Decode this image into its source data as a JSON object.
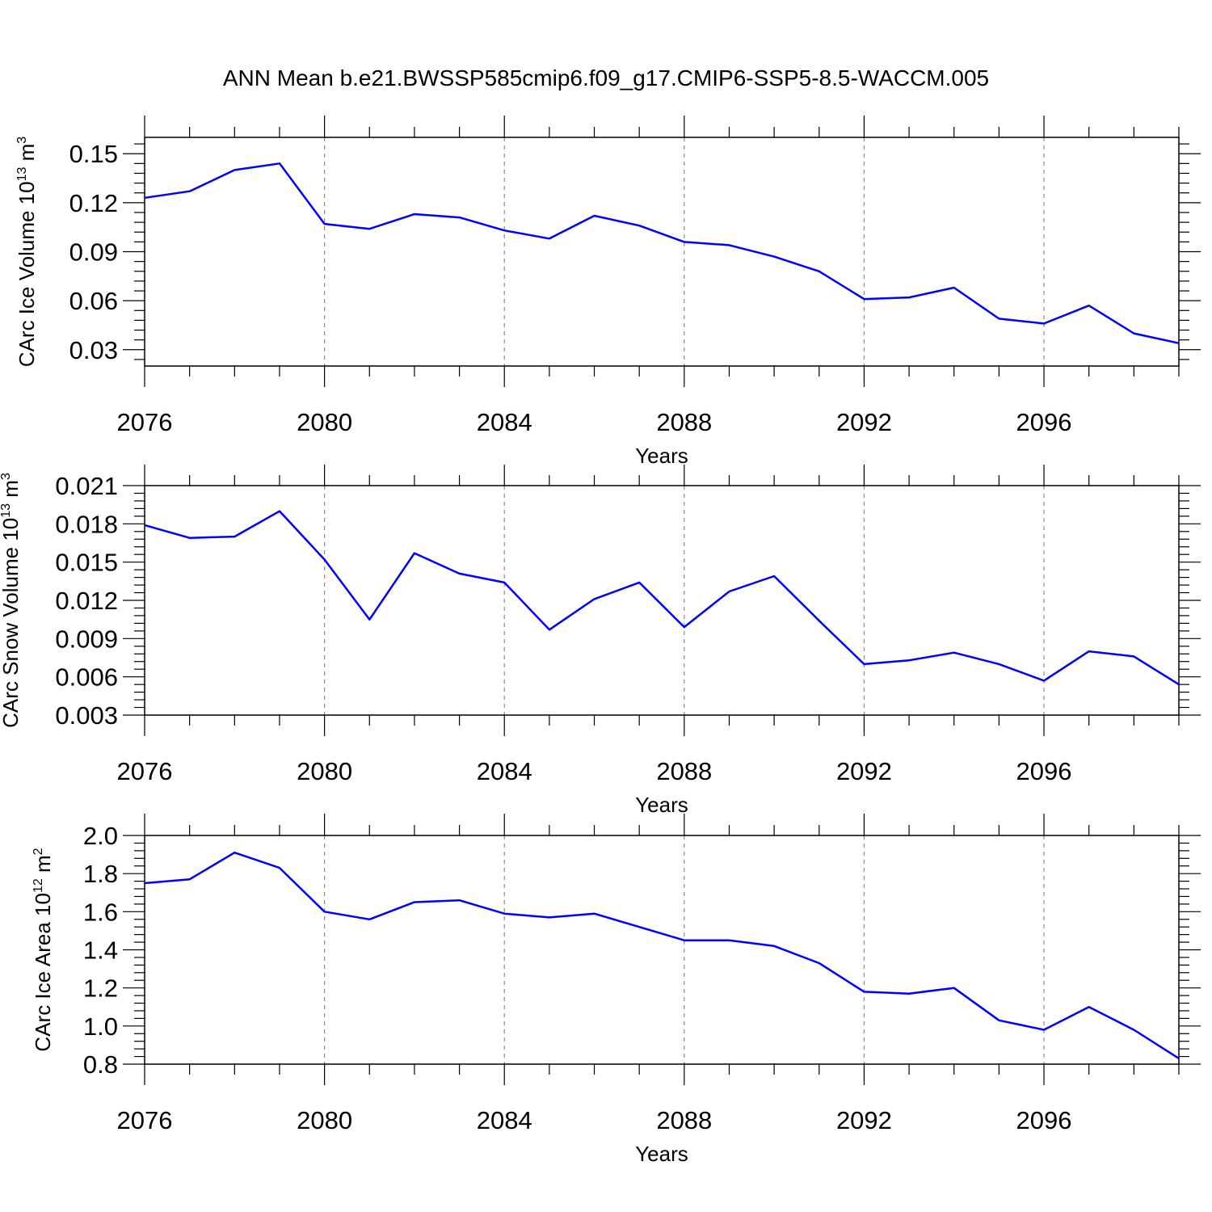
{
  "title": "ANN Mean b.e21.BWSSP585cmip6.f09_g17.CMIP6-SSP5-8.5-WACCM.005",
  "line_color": "#0000ff",
  "chart_data": [
    {
      "type": "line",
      "xlabel": "Years",
      "ylabel": {
        "base": "CArc Ice Volume 10",
        "exp": "13",
        "unit": " m",
        "unit_exp": "3"
      },
      "xlim": [
        2076,
        2099
      ],
      "ylim": [
        0.02,
        0.16
      ],
      "yticks": [
        0.03,
        0.06,
        0.09,
        0.12,
        0.15
      ],
      "ytick_labels": [
        "0.03",
        "0.06",
        "0.09",
        "0.12",
        "0.15"
      ],
      "xticks": [
        2076,
        2080,
        2084,
        2088,
        2092,
        2096
      ],
      "xtick_labels": [
        "2076",
        "2080",
        "2084",
        "2088",
        "2092",
        "2096"
      ],
      "grid": "vertical dashed at major x ticks",
      "x": [
        2076,
        2077,
        2078,
        2079,
        2080,
        2081,
        2082,
        2083,
        2084,
        2085,
        2086,
        2087,
        2088,
        2089,
        2090,
        2091,
        2092,
        2093,
        2094,
        2095,
        2096,
        2097,
        2098,
        2099
      ],
      "values": [
        0.123,
        0.127,
        0.14,
        0.144,
        0.107,
        0.104,
        0.113,
        0.111,
        0.103,
        0.098,
        0.112,
        0.106,
        0.096,
        0.094,
        0.087,
        0.078,
        0.061,
        0.062,
        0.068,
        0.049,
        0.046,
        0.057,
        0.04,
        0.034
      ]
    },
    {
      "type": "line",
      "xlabel": "Years",
      "ylabel": {
        "base": "CArc Snow Volume 10",
        "exp": "13",
        "unit": " m",
        "unit_exp": "3"
      },
      "xlim": [
        2076,
        2099
      ],
      "ylim": [
        0.003,
        0.021
      ],
      "yticks": [
        0.003,
        0.006,
        0.009,
        0.012,
        0.015,
        0.018,
        0.021
      ],
      "ytick_labels": [
        "0.003",
        "0.006",
        "0.009",
        "0.012",
        "0.015",
        "0.018",
        "0.021"
      ],
      "xticks": [
        2076,
        2080,
        2084,
        2088,
        2092,
        2096
      ],
      "xtick_labels": [
        "2076",
        "2080",
        "2084",
        "2088",
        "2092",
        "2096"
      ],
      "grid": "vertical dashed at major x ticks",
      "x": [
        2076,
        2077,
        2078,
        2079,
        2080,
        2081,
        2082,
        2083,
        2084,
        2085,
        2086,
        2087,
        2088,
        2089,
        2090,
        2091,
        2092,
        2093,
        2094,
        2095,
        2096,
        2097,
        2098,
        2099
      ],
      "values": [
        0.0179,
        0.0169,
        0.017,
        0.019,
        0.0152,
        0.0105,
        0.0157,
        0.0141,
        0.0134,
        0.0097,
        0.0121,
        0.0134,
        0.0099,
        0.0127,
        0.0139,
        0.0104,
        0.007,
        0.0073,
        0.0079,
        0.007,
        0.0057,
        0.008,
        0.0076,
        0.0054
      ]
    },
    {
      "type": "line",
      "xlabel": "Years",
      "ylabel": {
        "base": "CArc Ice Area 10",
        "exp": "12",
        "unit": " m",
        "unit_exp": "2"
      },
      "xlim": [
        2076,
        2099
      ],
      "ylim": [
        0.8,
        2.0
      ],
      "yticks": [
        0.8,
        1.0,
        1.2,
        1.4,
        1.6,
        1.8,
        2.0
      ],
      "ytick_labels": [
        "0.8",
        "1.0",
        "1.2",
        "1.4",
        "1.6",
        "1.8",
        "2.0"
      ],
      "xticks": [
        2076,
        2080,
        2084,
        2088,
        2092,
        2096
      ],
      "xtick_labels": [
        "2076",
        "2080",
        "2084",
        "2088",
        "2092",
        "2096"
      ],
      "grid": "vertical dashed at major x ticks",
      "x": [
        2076,
        2077,
        2078,
        2079,
        2080,
        2081,
        2082,
        2083,
        2084,
        2085,
        2086,
        2087,
        2088,
        2089,
        2090,
        2091,
        2092,
        2093,
        2094,
        2095,
        2096,
        2097,
        2098,
        2099
      ],
      "values": [
        1.75,
        1.77,
        1.91,
        1.83,
        1.6,
        1.56,
        1.65,
        1.66,
        1.59,
        1.57,
        1.59,
        1.52,
        1.45,
        1.45,
        1.42,
        1.33,
        1.18,
        1.17,
        1.2,
        1.03,
        0.98,
        1.1,
        0.98,
        0.83
      ]
    }
  ]
}
